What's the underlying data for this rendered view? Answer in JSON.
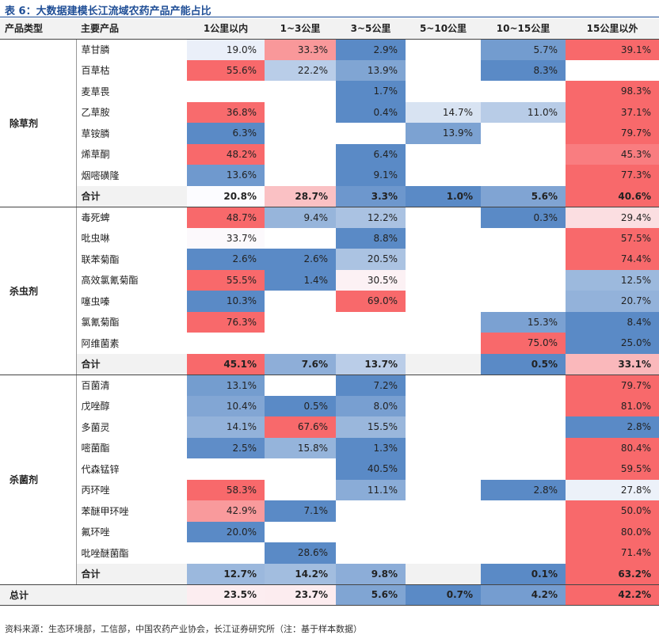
{
  "title": "表 6：大数据建模长江流域农药产品产能占比",
  "columns": [
    "产品类型",
    "主要产品",
    "1公里以内",
    "1~3公里",
    "3~5公里",
    "5~10公里",
    "10~15公里",
    "15公里以外"
  ],
  "groups": [
    {
      "category": "除草剂",
      "rows": [
        {
          "product": "草甘膦",
          "values": [
            "19.0%",
            "33.3%",
            "2.9%",
            "",
            "5.7%",
            "39.1%"
          ]
        },
        {
          "product": "百草枯",
          "values": [
            "55.6%",
            "22.2%",
            "13.9%",
            "",
            "8.3%",
            ""
          ]
        },
        {
          "product": "麦草畏",
          "values": [
            "",
            "",
            "1.7%",
            "",
            "",
            "98.3%"
          ]
        },
        {
          "product": "乙草胺",
          "values": [
            "36.8%",
            "",
            "0.4%",
            "14.7%",
            "11.0%",
            "37.1%"
          ]
        },
        {
          "product": "草铵膦",
          "values": [
            "6.3%",
            "",
            "",
            "13.9%",
            "",
            "79.7%"
          ]
        },
        {
          "product": "烯草酮",
          "values": [
            "48.2%",
            "",
            "6.4%",
            "",
            "",
            "45.3%"
          ]
        },
        {
          "product": "烟嘧磺隆",
          "values": [
            "13.6%",
            "",
            "9.1%",
            "",
            "",
            "77.3%"
          ]
        }
      ],
      "subtotal": {
        "label": "合计",
        "values": [
          "20.8%",
          "28.7%",
          "3.3%",
          "1.0%",
          "5.6%",
          "40.6%"
        ]
      }
    },
    {
      "category": "杀虫剂",
      "rows": [
        {
          "product": "毒死蜱",
          "values": [
            "48.7%",
            "9.4%",
            "12.2%",
            "",
            "0.3%",
            "29.4%"
          ]
        },
        {
          "product": "吡虫啉",
          "values": [
            "33.7%",
            "",
            "8.8%",
            "",
            "",
            "57.5%"
          ]
        },
        {
          "product": "联苯菊酯",
          "values": [
            "2.6%",
            "2.6%",
            "20.5%",
            "",
            "",
            "74.4%"
          ]
        },
        {
          "product": "高效氯氰菊酯",
          "values": [
            "55.5%",
            "1.4%",
            "30.5%",
            "",
            "",
            "12.5%"
          ]
        },
        {
          "product": "噻虫嗪",
          "values": [
            "10.3%",
            "",
            "69.0%",
            "",
            "",
            "20.7%"
          ]
        },
        {
          "product": "氯氰菊酯",
          "values": [
            "76.3%",
            "",
            "",
            "",
            "15.3%",
            "8.4%"
          ]
        },
        {
          "product": "阿维菌素",
          "values": [
            "",
            "",
            "",
            "",
            "75.0%",
            "25.0%"
          ]
        }
      ],
      "subtotal": {
        "label": "合计",
        "values": [
          "45.1%",
          "7.6%",
          "13.7%",
          "",
          "0.5%",
          "33.1%"
        ]
      }
    },
    {
      "category": "杀菌剂",
      "rows": [
        {
          "product": "百菌清",
          "values": [
            "13.1%",
            "",
            "7.2%",
            "",
            "",
            "79.7%"
          ]
        },
        {
          "product": "戊唑醇",
          "values": [
            "10.4%",
            "0.5%",
            "8.0%",
            "",
            "",
            "81.0%"
          ]
        },
        {
          "product": "多菌灵",
          "values": [
            "14.1%",
            "67.6%",
            "15.5%",
            "",
            "",
            "2.8%"
          ]
        },
        {
          "product": "嘧菌酯",
          "values": [
            "2.5%",
            "15.8%",
            "1.3%",
            "",
            "",
            "80.4%"
          ]
        },
        {
          "product": "代森锰锌",
          "values": [
            "",
            "",
            "40.5%",
            "",
            "",
            "59.5%"
          ]
        },
        {
          "product": "丙环唑",
          "values": [
            "58.3%",
            "",
            "11.1%",
            "",
            "2.8%",
            "27.8%"
          ]
        },
        {
          "product": "苯醚甲环唑",
          "values": [
            "42.9%",
            "7.1%",
            "",
            "",
            "",
            "50.0%"
          ]
        },
        {
          "product": "氟环唑",
          "values": [
            "20.0%",
            "",
            "",
            "",
            "",
            "80.0%"
          ]
        },
        {
          "product": "吡唑醚菌酯",
          "values": [
            "",
            "28.6%",
            "",
            "",
            "",
            "71.4%"
          ]
        }
      ],
      "subtotal": {
        "label": "合计",
        "values": [
          "12.7%",
          "14.2%",
          "9.8%",
          "",
          "0.1%",
          "63.2%"
        ]
      }
    }
  ],
  "total": {
    "label": "总计",
    "values": [
      "23.5%",
      "23.7%",
      "5.6%",
      "0.7%",
      "4.2%",
      "42.2%"
    ]
  },
  "colors": {
    "high": "#f8696b",
    "mid": "#fcfcff",
    "low": "#5a8ac6",
    "subtotal_bg": "#f2f2f2",
    "title": "#1f4e96"
  },
  "source": "资料来源：生态环境部，工信部，中国农药产业协会，长江证券研究所（注：基于样本数据）"
}
